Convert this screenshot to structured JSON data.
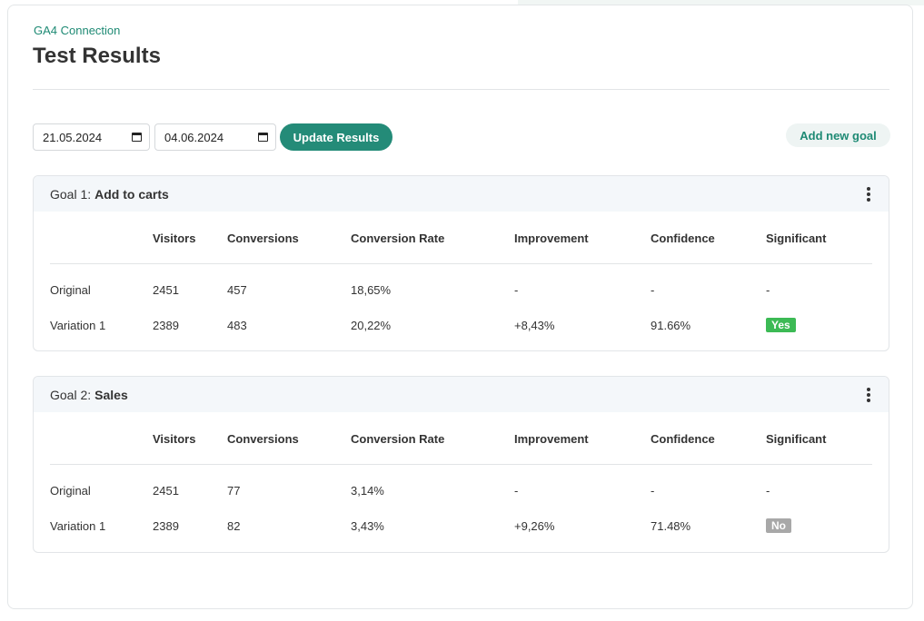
{
  "breadcrumb": "GA4 Connection",
  "title": "Test Results",
  "controls": {
    "date_from": "21.05.2024",
    "date_to": "04.06.2024",
    "update_label": "Update Results",
    "add_goal_label": "Add new goal"
  },
  "columns": [
    "Visitors",
    "Conversions",
    "Conversion Rate",
    "Improvement",
    "Confidence",
    "Significant"
  ],
  "colors": {
    "accent": "#248b78",
    "link": "#1e8a74",
    "significant_yes": "#3cba55",
    "significant_no": "#a8a8a8"
  },
  "goals": [
    {
      "prefix": "Goal 1:",
      "name": "Add to carts",
      "rows": [
        {
          "label": "Original",
          "visitors": "2451",
          "conversions": "457",
          "rate": "18,65%",
          "improvement": "-",
          "confidence": "-",
          "significant": "-"
        },
        {
          "label": "Variation 1",
          "visitors": "2389",
          "conversions": "483",
          "rate": "20,22%",
          "improvement": "+8,43%",
          "confidence": "91.66%",
          "significant": "Yes"
        }
      ]
    },
    {
      "prefix": "Goal 2:",
      "name": "Sales",
      "rows": [
        {
          "label": "Original",
          "visitors": "2451",
          "conversions": "77",
          "rate": "3,14%",
          "improvement": "-",
          "confidence": "-",
          "significant": "-"
        },
        {
          "label": "Variation 1",
          "visitors": "2389",
          "conversions": "82",
          "rate": "3,43%",
          "improvement": "+9,26%",
          "confidence": "71.48%",
          "significant": "No"
        }
      ]
    }
  ]
}
